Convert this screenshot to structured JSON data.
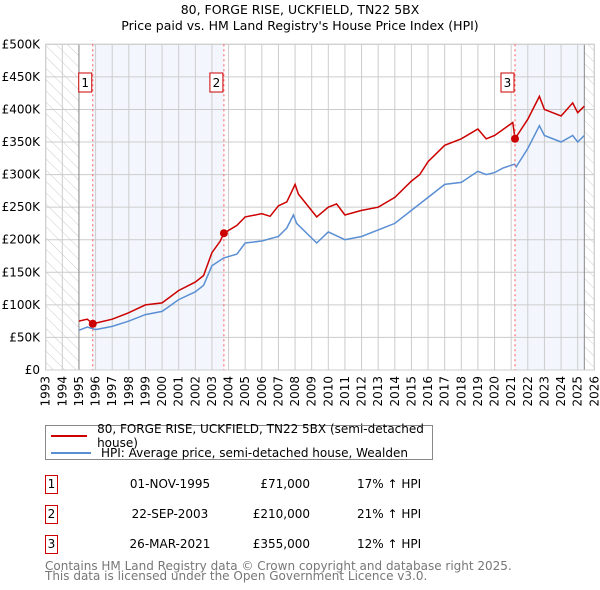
{
  "chart_data": {
    "type": "line",
    "title": "80, FORGE RISE, UCKFIELD, TN22 5BX",
    "subtitle": "Price paid vs. HM Land Registry's House Price Index (HPI)",
    "xlim": [
      1993,
      2026
    ],
    "ylim": [
      0,
      500000
    ],
    "x_ticks": [
      "1993",
      "1994",
      "1995",
      "1996",
      "1997",
      "1998",
      "1999",
      "2000",
      "2001",
      "2002",
      "2003",
      "2004",
      "2005",
      "2006",
      "2007",
      "2008",
      "2009",
      "2010",
      "2011",
      "2012",
      "2013",
      "2014",
      "2015",
      "2016",
      "2017",
      "2018",
      "2019",
      "2020",
      "2021",
      "2022",
      "2023",
      "2024",
      "2025",
      "2026"
    ],
    "y_ticks": [
      {
        "v": 0,
        "label": "£0"
      },
      {
        "v": 50000,
        "label": "£50K"
      },
      {
        "v": 100000,
        "label": "£100K"
      },
      {
        "v": 150000,
        "label": "£150K"
      },
      {
        "v": 200000,
        "label": "£200K"
      },
      {
        "v": 250000,
        "label": "£250K"
      },
      {
        "v": 300000,
        "label": "£300K"
      },
      {
        "v": 350000,
        "label": "£350K"
      },
      {
        "v": 400000,
        "label": "£400K"
      },
      {
        "v": 450000,
        "label": "£450K"
      },
      {
        "v": 500000,
        "label": "£500K"
      }
    ],
    "grid": true,
    "hatched_ranges": [
      [
        1993,
        1995
      ],
      [
        2025.4,
        2026
      ]
    ],
    "shaded_ranges": [
      [
        1995.83,
        2003.72
      ],
      [
        2021.23,
        2025.4
      ]
    ],
    "series": [
      {
        "name": "80, FORGE RISE, UCKFIELD, TN22 5BX (semi-detached house)",
        "color": "#cc0000",
        "x": [
          1995,
          1995.5,
          1995.83,
          1996,
          1997,
          1998,
          1999,
          2000,
          2001,
          2002,
          2002.5,
          2003,
          2003.5,
          2003.72,
          2004.5,
          2005,
          2006,
          2006.5,
          2007,
          2007.5,
          2008,
          2008.2,
          2009.3,
          2010,
          2010.5,
          2011,
          2012,
          2013,
          2014,
          2015,
          2015.5,
          2016,
          2017,
          2018,
          2019,
          2019.5,
          2020,
          2021.1,
          2021.23,
          2022,
          2022.7,
          2023,
          2024,
          2024.7,
          2025,
          2025.4
        ],
        "y": [
          75000,
          78000,
          71000,
          72000,
          78000,
          88000,
          100000,
          103000,
          122000,
          135000,
          145000,
          180000,
          198000,
          210000,
          222000,
          235000,
          240000,
          236000,
          252000,
          258000,
          285000,
          270000,
          235000,
          250000,
          255000,
          238000,
          245000,
          250000,
          265000,
          290000,
          300000,
          320000,
          345000,
          355000,
          370000,
          355000,
          360000,
          380000,
          355000,
          385000,
          420000,
          400000,
          390000,
          410000,
          395000,
          405000
        ]
      },
      {
        "name": "HPI: Average price, semi-detached house, Wealden",
        "color": "#5b8fd4",
        "x": [
          1995,
          1995.5,
          1996,
          1997,
          1998,
          1999,
          2000,
          2001,
          2002,
          2002.5,
          2003,
          2003.7,
          2004.5,
          2005,
          2006,
          2007,
          2007.5,
          2007.9,
          2008.1,
          2009.3,
          2010,
          2011,
          2012,
          2013,
          2014,
          2015,
          2016,
          2017,
          2018,
          2019,
          2019.5,
          2020,
          2020.5,
          2021.2,
          2021.3,
          2022,
          2022.7,
          2023,
          2024,
          2024.7,
          2025,
          2025.4
        ],
        "y": [
          61000,
          66000,
          62000,
          67000,
          75000,
          85000,
          90000,
          108000,
          120000,
          130000,
          160000,
          172000,
          178000,
          195000,
          198000,
          205000,
          218000,
          238000,
          225000,
          195000,
          212000,
          200000,
          205000,
          215000,
          225000,
          245000,
          265000,
          285000,
          288000,
          305000,
          300000,
          303000,
          310000,
          316000,
          312000,
          340000,
          375000,
          360000,
          350000,
          360000,
          350000,
          360000
        ]
      }
    ],
    "sales": [
      {
        "n": "1",
        "x": 1995.83,
        "y": 71000,
        "date": "01-NOV-1995",
        "price": "£71,000",
        "hpi": "17% ↑ HPI"
      },
      {
        "n": "2",
        "x": 2003.72,
        "y": 210000,
        "date": "22-SEP-2003",
        "price": "£210,000",
        "hpi": "21% ↑ HPI"
      },
      {
        "n": "3",
        "x": 2021.23,
        "y": 355000,
        "date": "26-MAR-2021",
        "price": "£355,000",
        "hpi": "12% ↑ HPI"
      }
    ]
  },
  "footer": {
    "line1": "Contains HM Land Registry data © Crown copyright and database right 2025.",
    "line2": "This data is licensed under the Open Government Licence v3.0."
  }
}
